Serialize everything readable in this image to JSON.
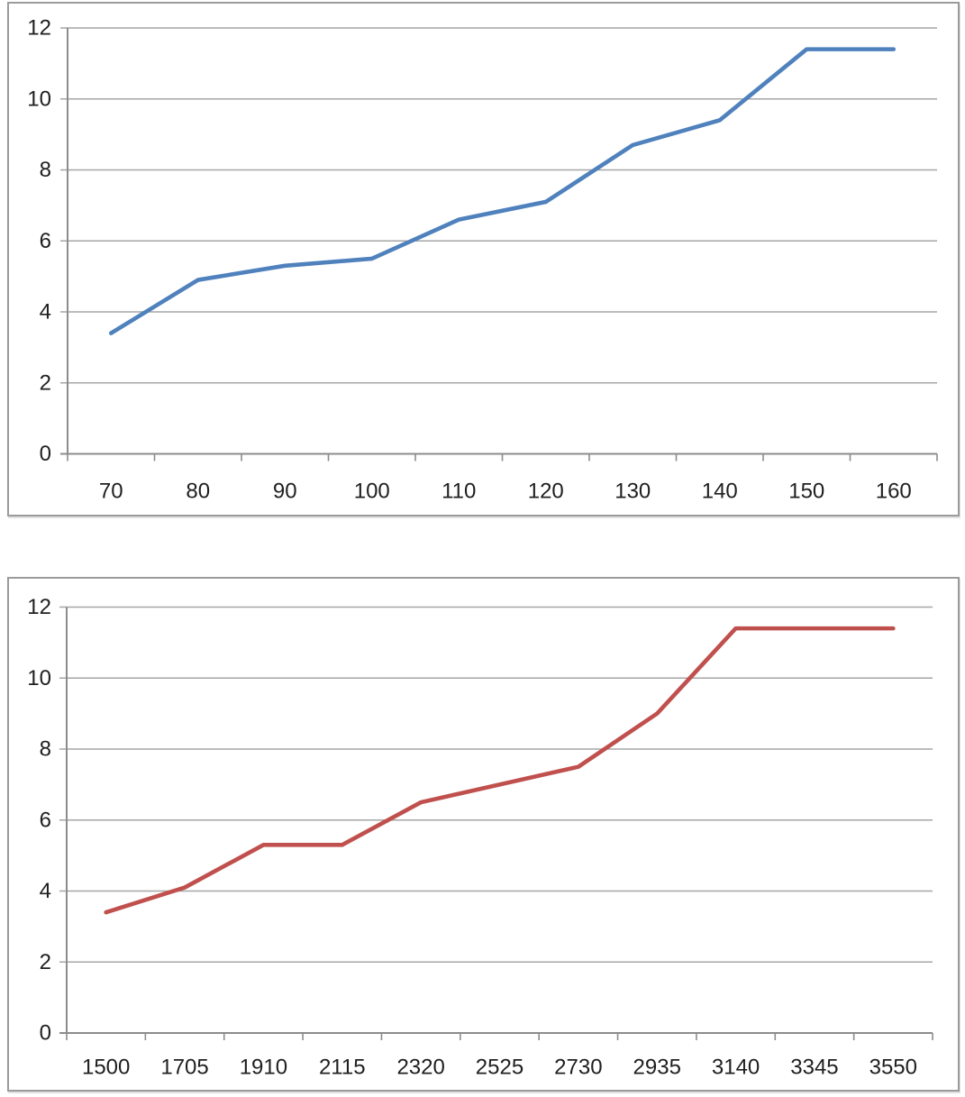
{
  "style": {
    "background": "#FFFFFF",
    "grid_color": "#A6A6A6",
    "axis_color": "#8C8C8C",
    "frame_border_color": "#9B9B9B",
    "label_color": "#1F1F1F",
    "blue_series_color": "#4F81BD",
    "red_series_color": "#C0504D"
  },
  "chart_data": [
    {
      "type": "line",
      "title": "",
      "xlabel": "",
      "ylabel": "",
      "legend": "none",
      "grid": "horizontal",
      "line_color": "#4F81BD",
      "categories": [
        "70",
        "80",
        "90",
        "100",
        "110",
        "120",
        "130",
        "140",
        "150",
        "160"
      ],
      "values": [
        3.4,
        4.9,
        5.3,
        5.5,
        6.6,
        7.1,
        8.7,
        9.4,
        11.4,
        11.4
      ],
      "ylim": [
        0,
        12
      ],
      "ytick_values": [
        0,
        2,
        4,
        6,
        8,
        10,
        12
      ],
      "ytick_labels": [
        "0",
        "2",
        "4",
        "6",
        "8",
        "10",
        "12"
      ]
    },
    {
      "type": "line",
      "title": "",
      "xlabel": "",
      "ylabel": "",
      "legend": "none",
      "grid": "horizontal",
      "line_color": "#C0504D",
      "categories": [
        "1500",
        "1705",
        "1910",
        "2115",
        "2320",
        "2525",
        "2730",
        "2935",
        "3140",
        "3345",
        "3550"
      ],
      "values": [
        3.4,
        4.1,
        5.3,
        5.3,
        6.5,
        7.0,
        7.5,
        9.0,
        11.4,
        11.4,
        11.4
      ],
      "ylim": [
        0,
        12
      ],
      "ytick_values": [
        0,
        2,
        4,
        6,
        8,
        10,
        12
      ],
      "ytick_labels": [
        "0",
        "2",
        "4",
        "6",
        "8",
        "10",
        "12"
      ]
    }
  ]
}
